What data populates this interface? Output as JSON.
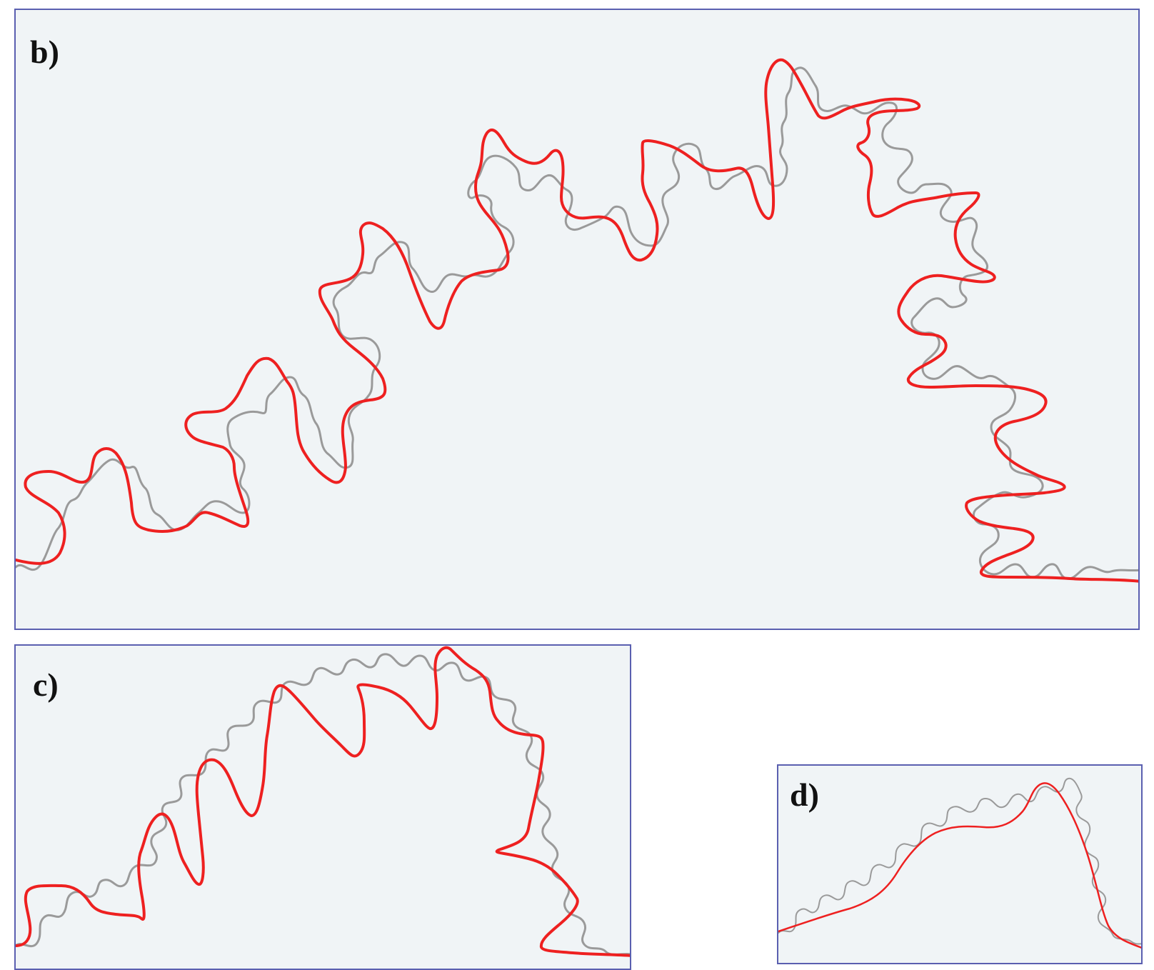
{
  "panels": [
    {
      "id": "b",
      "label": "b)",
      "red_color": "#ee2020",
      "gray_color": "#9a9a9a",
      "border_color": "#5a5fb0",
      "background": "#f0f4f6"
    },
    {
      "id": "c",
      "label": "c)",
      "red_color": "#ee2020",
      "gray_color": "#9a9a9a",
      "border_color": "#5a5fb0",
      "background": "#f0f4f6"
    },
    {
      "id": "d",
      "label": "d)",
      "red_color": "#ee2020",
      "gray_color": "#9a9a9a",
      "border_color": "#5a5fb0",
      "background": "#f0f4f6"
    }
  ]
}
